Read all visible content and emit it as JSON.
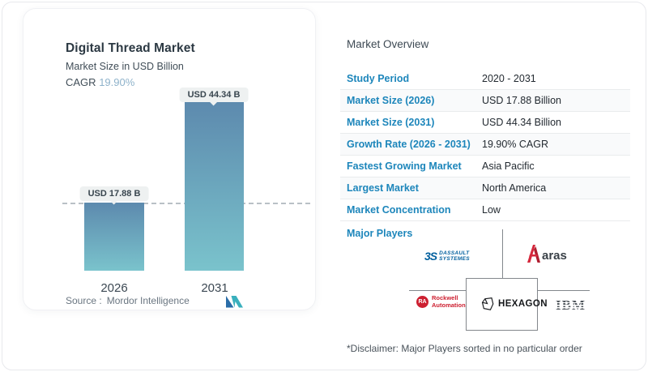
{
  "colors": {
    "accent_blue": "#1d86bb",
    "cagr_value_blue": "#8fb3cb",
    "bar_gradient_top": "#5d8aae",
    "bar_gradient_bottom": "#7ac3cc",
    "dassault_blue": "#005f9e",
    "aras_red": "#d5283c",
    "rockwell_red": "#cd2031"
  },
  "chart_card": {
    "title": "Digital Thread Market",
    "subtitle": "Market Size in USD Billion",
    "cagr_label": "CAGR",
    "cagr_value": "19.90%",
    "source_label": "Source :",
    "source_value": "Mordor Intelligence"
  },
  "chart_data": {
    "type": "bar",
    "title": "Digital Thread Market",
    "ylabel": "Market Size in USD Billion",
    "categories": [
      "2026",
      "2031"
    ],
    "values": [
      17.88,
      44.34
    ],
    "bar_labels": [
      "USD 17.88 B",
      "USD 44.34 B"
    ],
    "cagr": "19.90%",
    "reference_line_value": 17.88,
    "grid": false,
    "legend": false
  },
  "overview": {
    "title": "Market Overview",
    "rows": [
      {
        "label": "Study Period",
        "value": "2020 - 2031"
      },
      {
        "label": "Market Size (2026)",
        "value": "USD 17.88 Billion"
      },
      {
        "label": "Market Size (2031)",
        "value": "USD 44.34 Billion"
      },
      {
        "label": "Growth Rate (2026 - 2031)",
        "value": "19.90% CAGR"
      },
      {
        "label": "Fastest Growing Market",
        "value": "Asia Pacific"
      },
      {
        "label": "Largest Market",
        "value": "North America"
      },
      {
        "label": "Market Concentration",
        "value": "Low"
      }
    ],
    "major_players": {
      "label": "Major Players",
      "players": [
        {
          "name": "Dassault Systèmes",
          "glyph": "3S",
          "line1": "DASSAULT",
          "line2": "SYSTEMES"
        },
        {
          "name": "Aras",
          "text": "aras"
        },
        {
          "name": "Rockwell Automation",
          "badge": "RA",
          "line1": "Rockwell",
          "line2": "Automation"
        },
        {
          "name": "Hexagon",
          "text": "HEXAGON"
        },
        {
          "name": "IBM",
          "text": "IBM"
        }
      ]
    },
    "disclaimer": "*Disclaimer: Major Players sorted in no particular order"
  }
}
